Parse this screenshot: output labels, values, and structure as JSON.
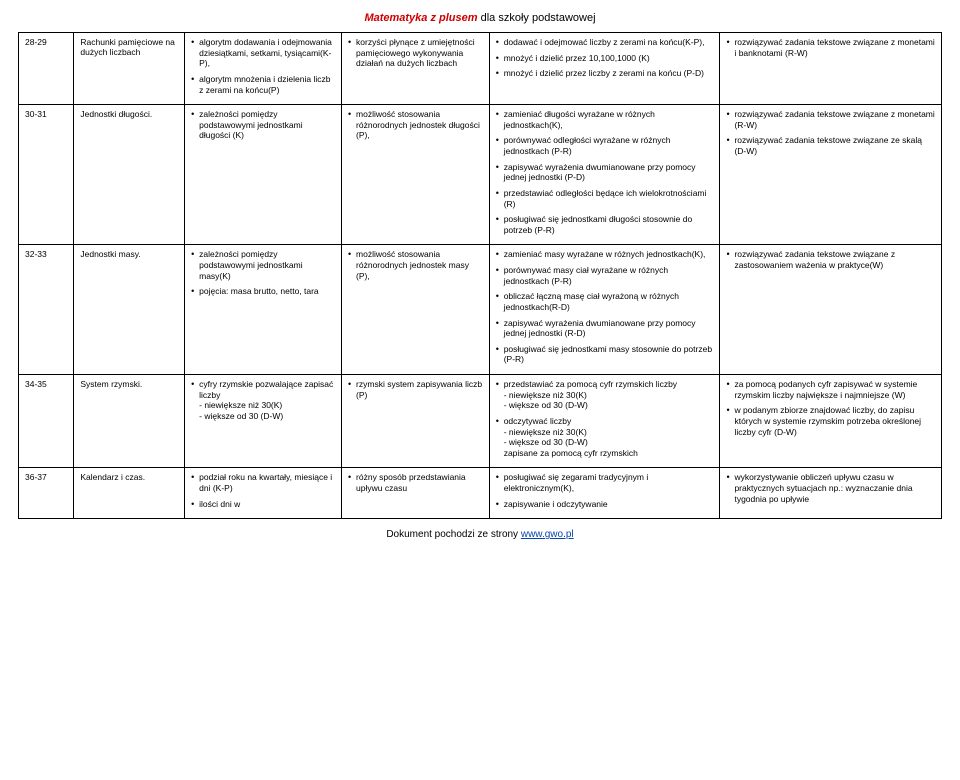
{
  "header": {
    "brand": "Matematyka z plusem",
    "suffix": " dla szkoły podstawowej"
  },
  "rows": [
    {
      "num": "28-29",
      "topic": "Rachunki pamięciowe na dużych liczbach",
      "c3": [
        "algorytm dodawania i odejmowania dziesiątkami, setkami, tysiącami(K-P),",
        "algorytm mnożenia i dzielenia liczb z zerami na końcu(P)"
      ],
      "c4": [
        "korzyści płynące z umiejętności pamięciowego wykonywania działań na dużych liczbach"
      ],
      "c5": [
        "dodawać i odejmować liczby z zerami na końcu(K-P),",
        "mnożyć i dzielić przez 10,100,1000 (K)",
        "mnożyć i dzielić przez liczby z zerami na końcu (P-D)"
      ],
      "c6": [
        "rozwiązywać zadania tekstowe związane z monetami i banknotami (R-W)"
      ]
    },
    {
      "num": "30-31",
      "topic": "Jednostki długości.",
      "c3": [
        "zależności pomiędzy podstawowymi jednostkami długości (K)"
      ],
      "c4": [
        "możliwość stosowania różnorodnych jednostek długości (P),"
      ],
      "c5": [
        "zamieniać długości wyrażane w różnych jednostkach(K),",
        "porównywać odległości wyrażane w różnych jednostkach (P-R)",
        "zapisywać wyrażenia dwumianowane przy pomocy jednej jednostki (P-D)",
        "przedstawiać odległości będące ich wielokrotnościami (R)",
        "posługiwać się jednostkami długości stosownie do potrzeb (P-R)"
      ],
      "c6": [
        "rozwiązywać zadania tekstowe związane z monetami (R-W)",
        "rozwiązywać zadania tekstowe związane ze skalą (D-W)"
      ]
    },
    {
      "num": "32-33",
      "topic": "Jednostki masy.",
      "c3": [
        "zależności pomiędzy podstawowymi jednostkami masy(K)",
        "pojęcia: masa brutto, netto, tara"
      ],
      "c4": [
        "możliwość stosowania różnorodnych jednostek masy (P),"
      ],
      "c5": [
        "zamieniać masy wyrażane w różnych jednostkach(K),",
        "porównywać masy ciał wyrażane w różnych jednostkach (P-R)",
        "obliczać łączną masę ciał wyrażoną w różnych jednostkach(R-D)",
        "zapisywać wyrażenia dwumianowane przy pomocy jednej jednostki (R-D)",
        "posługiwać się jednostkami masy stosownie do potrzeb (P-R)"
      ],
      "c6": [
        "rozwiązywać zadania tekstowe związane z zastosowaniem ważenia w praktyce(W)"
      ]
    },
    {
      "num": "34-35",
      "topic": "System rzymski.",
      "c3": [
        "cyfry rzymskie pozwalające zapisać liczby\n- niewiększe niż 30(K)\n- większe od 30 (D-W)"
      ],
      "c4": [
        "rzymski system zapisywania liczb (P)"
      ],
      "c5": [
        "przedstawiać za pomocą cyfr rzymskich liczby\n- niewiększe niż 30(K)\n- większe od 30 (D-W)",
        "odczytywać liczby\n- niewiększe niż 30(K)\n- większe od 30 (D-W)\nzapisane za pomocą cyfr rzymskich"
      ],
      "c6": [
        "za pomocą podanych cyfr zapisywać w systemie rzymskim liczby największe i najmniejsze (W)",
        "w podanym zbiorze znajdować liczby, do zapisu których w systemie rzymskim potrzeba określonej liczby cyfr (D-W)"
      ]
    },
    {
      "num": "36-37",
      "topic": "Kalendarz i czas.",
      "c3": [
        "podział roku na kwartały, miesiące i dni (K-P)",
        "ilości dni w"
      ],
      "c4": [
        "różny sposób przedstawiania upływu czasu"
      ],
      "c5": [
        "posługiwać się zegarami tradycyjnym i elektronicznym(K),",
        "zapisywanie i odczytywanie"
      ],
      "c6": [
        "wykorzystywanie obliczeń upływu czasu  w praktycznych sytuacjach np.: wyznaczanie dnia tygodnia po upływie"
      ]
    }
  ],
  "footer": {
    "prefix": "Dokument pochodzi ze strony ",
    "link": "www.gwo.pl"
  }
}
